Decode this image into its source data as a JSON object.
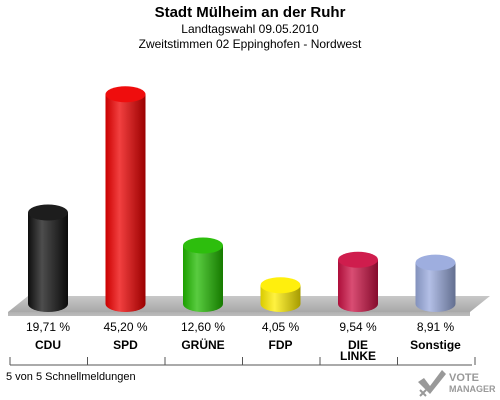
{
  "header": {
    "title": "Stadt Mülheim an der Ruhr",
    "subtitle1": "Landtagswahl 09.05.2010",
    "subtitle2": "Zweitstimmen 02 Eppinghofen - Nordwest"
  },
  "footer": {
    "status": "5 von 5 Schnellmeldungen"
  },
  "logo": {
    "line1": "VOTE",
    "line2": "MANAGER"
  },
  "chart_data": {
    "type": "bar",
    "title": "Stadt Mülheim an der Ruhr",
    "subtitle": "Landtagswahl 09.05.2010 — Zweitstimmen 02 Eppinghofen - Nordwest",
    "xlabel": "",
    "ylabel": "",
    "ylim": [
      0,
      50
    ],
    "grid": false,
    "legend": "none",
    "categories": [
      "CDU",
      "SPD",
      "GRÜNE",
      "FDP",
      "DIE LINKE",
      "Sonstige"
    ],
    "category_lines": [
      [
        "CDU"
      ],
      [
        "SPD"
      ],
      [
        "GRÜNE"
      ],
      [
        "FDP"
      ],
      [
        "DIE",
        "LINKE"
      ],
      [
        "Sonstige"
      ]
    ],
    "values": [
      19.71,
      45.2,
      12.6,
      4.05,
      9.54,
      8.91
    ],
    "labels": [
      "19,71 %",
      "45,20 %",
      "12,60 %",
      "4,05 %",
      "9,54 %",
      "8,91 %"
    ],
    "colors": [
      "#111111",
      "#ee0000",
      "#22bb00",
      "#ffee00",
      "#cc1144",
      "#99aadd"
    ]
  }
}
